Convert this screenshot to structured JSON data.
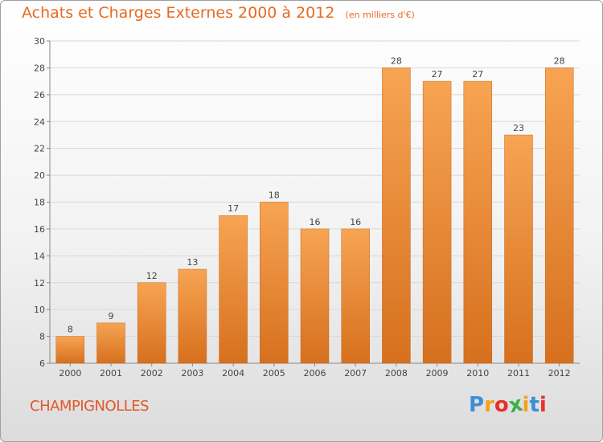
{
  "title": "Achats et Charges Externes 2000 à 2012",
  "subtitle": "(en milliers d'€)",
  "commune": "CHAMPIGNOLLES",
  "logo": {
    "letters": [
      "P",
      "r",
      "o",
      "x",
      "i",
      "t",
      "i"
    ],
    "colors": [
      "#3a8fd6",
      "#f3a21c",
      "#e4322b",
      "#3fae49",
      "#f3a21c",
      "#3a8fd6",
      "#e4322b"
    ]
  },
  "colors": {
    "bar": "#f4a04f",
    "bar_dark": "#d9731f",
    "text_accent": "#e56a22"
  },
  "chart_data": {
    "type": "bar",
    "title": "Achats et Charges Externes 2000 à 2012",
    "subtitle": "(en milliers d'€)",
    "categories": [
      "2000",
      "2001",
      "2002",
      "2003",
      "2004",
      "2005",
      "2006",
      "2007",
      "2008",
      "2009",
      "2010",
      "2011",
      "2012"
    ],
    "values": [
      8,
      9,
      12,
      13,
      17,
      18,
      16,
      16,
      28,
      27,
      27,
      23,
      28
    ],
    "ylim": [
      6,
      30
    ],
    "yticks": [
      6,
      8,
      10,
      12,
      14,
      16,
      18,
      20,
      22,
      24,
      26,
      28,
      30
    ],
    "grid": true,
    "xlabel": "",
    "ylabel": ""
  }
}
